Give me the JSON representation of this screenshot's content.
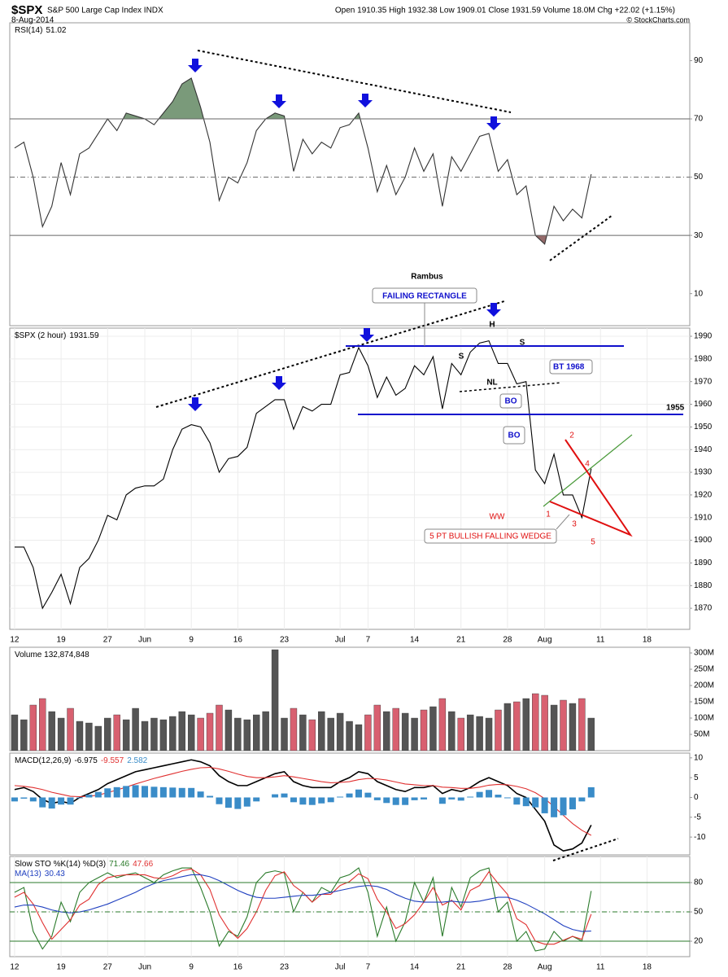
{
  "header": {
    "symbol": "$SPX",
    "name": "S&P 500 Large Cap Index INDX",
    "date": "8-Aug-2014",
    "quote": "Open 1910.35 High 1932.38 Low 1909.01 Close 1931.59 Volume 18.0M Chg +22.02 (+1.15%)",
    "credit": "© StockCharts.com"
  },
  "annotations": {
    "author": "Rambus",
    "pattern": "FAILING RECTANGLE",
    "head": "H",
    "left_shoulder": "S",
    "right_shoulder": "S",
    "neckline": "NL",
    "backtest": "BT 1968",
    "breakout_1": "BO",
    "breakout_2": "BO",
    "level_label": 1955,
    "wedge_points": [
      "1",
      "2",
      "3",
      "4",
      "5"
    ],
    "ww": "WW",
    "wedge": "5 PT BULLISH FALLING WEDGE"
  },
  "chart_data": [
    {
      "type": "line",
      "title": "RSI(14)",
      "xlim": [
        -0.52,
        72.6
      ],
      "ylim": [
        -1,
        103
      ],
      "yticks": [
        10,
        30,
        50,
        70,
        90
      ],
      "levels": [
        {
          "value": 70,
          "shade": "above",
          "color": "#6b8f6b"
        },
        {
          "value": 50,
          "dash": true
        },
        {
          "value": 30,
          "shade": "below",
          "color": "#8a5a5a"
        }
      ],
      "level_color": "#666",
      "x": [
        0,
        1,
        2,
        3,
        4,
        5,
        6,
        7,
        8,
        9,
        10,
        11,
        12,
        13,
        14,
        15,
        16,
        17,
        18,
        19,
        20,
        21,
        22,
        23,
        24,
        25,
        26,
        27,
        28,
        29,
        30,
        31,
        32,
        33,
        34,
        35,
        36,
        37,
        38,
        39,
        40,
        41,
        42,
        43,
        44,
        45,
        46,
        47,
        48,
        49,
        50,
        51,
        52,
        53,
        54,
        55,
        56,
        57,
        58,
        59,
        60,
        61,
        62
      ],
      "series": [
        {
          "color": "#333333",
          "values": [
            60,
            62,
            50,
            33,
            40,
            55,
            44,
            58,
            60,
            65,
            70,
            66,
            72,
            71,
            70,
            68,
            72,
            76,
            82,
            84,
            74,
            62,
            42,
            50,
            48,
            55,
            66,
            70,
            72,
            71,
            52,
            63,
            58,
            62,
            60,
            67,
            68,
            72,
            60,
            45,
            54,
            44,
            50,
            60,
            52,
            58,
            40,
            57,
            52,
            58,
            64,
            65,
            52,
            56,
            44,
            47,
            30,
            27,
            40,
            35,
            39,
            36,
            51.02
          ]
        }
      ]
    },
    {
      "type": "line",
      "title": "$SPX (2 hour)",
      "xlim": [
        -0.52,
        72.6
      ],
      "ylim": [
        1860.7,
        1993.6
      ],
      "yticks": [
        1870,
        1880,
        1890,
        1900,
        1910,
        1920,
        1930,
        1940,
        1950,
        1960,
        1970,
        1980,
        1990
      ],
      "grid": true,
      "xticks": [
        {
          "value": 0,
          "label": "12"
        },
        {
          "value": 5,
          "label": "19"
        },
        {
          "value": 10,
          "label": "27"
        },
        {
          "value": 14,
          "label": "Jun"
        },
        {
          "value": 19,
          "label": "9"
        },
        {
          "value": 24,
          "label": "16"
        },
        {
          "value": 29,
          "label": "23"
        },
        {
          "value": 35,
          "label": "Jul"
        },
        {
          "value": 38,
          "label": "7"
        },
        {
          "value": 43,
          "label": "14"
        },
        {
          "value": 48,
          "label": "21"
        },
        {
          "value": 53,
          "label": "28"
        },
        {
          "value": 57,
          "label": "Aug"
        },
        {
          "value": 63,
          "label": "11"
        },
        {
          "value": 68,
          "label": "18"
        }
      ],
      "x": [
        0,
        1,
        2,
        3,
        4,
        5,
        6,
        7,
        8,
        9,
        10,
        11,
        12,
        13,
        14,
        15,
        16,
        17,
        18,
        19,
        20,
        21,
        22,
        23,
        24,
        25,
        26,
        27,
        28,
        29,
        30,
        31,
        32,
        33,
        34,
        35,
        36,
        37,
        38,
        39,
        40,
        41,
        42,
        43,
        44,
        45,
        46,
        47,
        48,
        49,
        50,
        51,
        52,
        53,
        54,
        55,
        56,
        57,
        58,
        59,
        60,
        61,
        62
      ],
      "series": [
        {
          "color": "#000000",
          "values": [
            1897,
            1897,
            1888,
            1870,
            1877,
            1885,
            1872,
            1888,
            1892,
            1900,
            1911,
            1909,
            1920,
            1923,
            1924,
            1924,
            1927,
            1940,
            1949,
            1951,
            1950,
            1943,
            1930,
            1936,
            1937,
            1941,
            1956,
            1959,
            1962,
            1962,
            1949,
            1959,
            1957,
            1960,
            1960,
            1973,
            1974,
            1985,
            1977,
            1963,
            1972,
            1964,
            1967,
            1977,
            1973,
            1981,
            1958,
            1978,
            1973,
            1983,
            1987,
            1988,
            1978,
            1978,
            1969,
            1970,
            1931,
            1925,
            1938,
            1920,
            1920,
            1910,
            1931.59
          ]
        }
      ]
    },
    {
      "type": "bar",
      "title": "Volume 132,874,848",
      "xlim": [
        -0.52,
        72.6
      ],
      "ylim": [
        0,
        317500000
      ],
      "up_color": "#555555",
      "down_color": "#d86070",
      "yticks": [
        {
          "value": 50000000,
          "label": "50M"
        },
        {
          "value": 100000000,
          "label": "100M"
        },
        {
          "value": 150000000,
          "label": "150M"
        },
        {
          "value": 200000000,
          "label": "200M"
        },
        {
          "value": 250000000,
          "label": "250M"
        },
        {
          "value": 300000000,
          "label": "300M"
        }
      ],
      "x": [
        0,
        1,
        2,
        3,
        4,
        5,
        6,
        7,
        8,
        9,
        10,
        11,
        12,
        13,
        14,
        15,
        16,
        17,
        18,
        19,
        20,
        21,
        22,
        23,
        24,
        25,
        26,
        27,
        28,
        29,
        30,
        31,
        32,
        33,
        34,
        35,
        36,
        37,
        38,
        39,
        40,
        41,
        42,
        43,
        44,
        45,
        46,
        47,
        48,
        49,
        50,
        51,
        52,
        53,
        54,
        55,
        56,
        57,
        58,
        59,
        60,
        61,
        62
      ],
      "series": [
        {
          "values": [
            110000000,
            95000000,
            140000000,
            160000000,
            120000000,
            100000000,
            130000000,
            90000000,
            85000000,
            75000000,
            100000000,
            110000000,
            95000000,
            130000000,
            90000000,
            100000000,
            95000000,
            105000000,
            120000000,
            110000000,
            100000000,
            115000000,
            140000000,
            125000000,
            100000000,
            95000000,
            110000000,
            120000000,
            310000000,
            100000000,
            130000000,
            110000000,
            95000000,
            120000000,
            100000000,
            115000000,
            90000000,
            80000000,
            110000000,
            140000000,
            120000000,
            130000000,
            115000000,
            100000000,
            125000000,
            135000000,
            160000000,
            120000000,
            100000000,
            110000000,
            105000000,
            100000000,
            125000000,
            145000000,
            150000000,
            160000000,
            175000000,
            170000000,
            140000000,
            155000000,
            145000000,
            160000000,
            100000000
          ]
        }
      ]
    },
    {
      "type": "line",
      "title": "MACD(12,26,9)",
      "xlim": [
        -0.52,
        72.6
      ],
      "ylim": [
        -14.5,
        11.2
      ],
      "yticks": [
        -10,
        -5,
        0,
        5,
        10
      ],
      "x": [
        0,
        1,
        2,
        3,
        4,
        5,
        6,
        7,
        8,
        9,
        10,
        11,
        12,
        13,
        14,
        15,
        16,
        17,
        18,
        19,
        20,
        21,
        22,
        23,
        24,
        25,
        26,
        27,
        28,
        29,
        30,
        31,
        32,
        33,
        34,
        35,
        36,
        37,
        38,
        39,
        40,
        41,
        42,
        43,
        44,
        45,
        46,
        47,
        48,
        49,
        50,
        51,
        52,
        53,
        54,
        55,
        56,
        57,
        58,
        59,
        60,
        61,
        62
      ],
      "series": [
        {
          "color": "#000000",
          "values": [
            2,
            2.5,
            1.5,
            -0.5,
            -1.5,
            -1,
            -1.5,
            0,
            1,
            2,
            3.5,
            4.5,
            5.5,
            6.5,
            7,
            7.5,
            8,
            8.5,
            9,
            9.5,
            9,
            8,
            5.5,
            4,
            3,
            3,
            4,
            5,
            6,
            6.5,
            4,
            3,
            2.5,
            2.5,
            2.5,
            4,
            5,
            6.5,
            6,
            4,
            3,
            2,
            1.5,
            2.5,
            2.5,
            3,
            1,
            2,
            1.5,
            2.5,
            4,
            5,
            4,
            3,
            1,
            0,
            -3,
            -6,
            -12,
            -13.5,
            -13,
            -11.5,
            -6.975
          ]
        },
        {
          "color": "#e03030",
          "values": [
            3,
            2.8,
            2.5,
            2,
            1.3,
            0.8,
            0.3,
            0.2,
            0.3,
            0.6,
            1.2,
            1.9,
            2.6,
            3.4,
            4.1,
            4.8,
            5.4,
            6,
            6.6,
            7.1,
            7.5,
            7.6,
            7.2,
            6.6,
            5.9,
            5.3,
            5,
            5,
            5.2,
            5.5,
            5.2,
            4.8,
            4.4,
            4,
            3.7,
            3.8,
            4,
            4.5,
            4.8,
            4.7,
            4.4,
            3.9,
            3.4,
            3.2,
            3,
            3,
            2.6,
            2.5,
            2.3,
            2.3,
            2.6,
            3.1,
            3.3,
            3.2,
            2.8,
            2.2,
            1.2,
            -0.3,
            -2.3,
            -4.5,
            -6.6,
            -8.3,
            -9.557
          ]
        },
        {
          "type": "bar",
          "color": "#3a8cc8",
          "values": [
            -1,
            -0.3,
            -1,
            -2.5,
            -2.8,
            -1.8,
            -1.8,
            -0.2,
            0.7,
            1.4,
            2.3,
            2.6,
            2.9,
            3.1,
            2.9,
            2.7,
            2.6,
            2.5,
            2.4,
            2.4,
            1.5,
            0.4,
            -1.7,
            -2.6,
            -2.9,
            -2.3,
            -1,
            0,
            0.8,
            1,
            -1.2,
            -1.8,
            -1.9,
            -1.5,
            -1.2,
            0.2,
            1,
            2,
            1.2,
            -0.7,
            -1.4,
            -1.9,
            -1.9,
            -0.7,
            -0.5,
            0,
            -1.6,
            -0.5,
            -0.8,
            0.2,
            1.4,
            1.9,
            0.7,
            -0.2,
            -1.8,
            -2.2,
            -2.5,
            -4,
            -5,
            -4.5,
            -3,
            -1,
            2.582
          ]
        }
      ]
    },
    {
      "type": "line",
      "title": "Slow STO %K(14) %D(3)",
      "xlim": [
        -0.52,
        72.6
      ],
      "ylim": [
        4.2,
        106.7
      ],
      "yticks": [
        20,
        50,
        80
      ],
      "grid": true,
      "levels": [
        {
          "value": 80
        },
        {
          "value": 50,
          "dash": true
        },
        {
          "value": 20
        }
      ],
      "level_color": "#2a7a2a",
      "xticks": [
        {
          "value": 0,
          "label": "12"
        },
        {
          "value": 5,
          "label": "19"
        },
        {
          "value": 10,
          "label": "27"
        },
        {
          "value": 14,
          "label": "Jun"
        },
        {
          "value": 19,
          "label": "9"
        },
        {
          "value": 24,
          "label": "16"
        },
        {
          "value": 29,
          "label": "23"
        },
        {
          "value": 35,
          "label": "Jul"
        },
        {
          "value": 38,
          "label": "7"
        },
        {
          "value": 43,
          "label": "14"
        },
        {
          "value": 48,
          "label": "21"
        },
        {
          "value": 53,
          "label": "28"
        },
        {
          "value": 57,
          "label": "Aug"
        },
        {
          "value": 63,
          "label": "11"
        },
        {
          "value": 68,
          "label": "18"
        }
      ],
      "x": [
        0,
        1,
        2,
        3,
        4,
        5,
        6,
        7,
        8,
        9,
        10,
        11,
        12,
        13,
        14,
        15,
        16,
        17,
        18,
        19,
        20,
        21,
        22,
        23,
        24,
        25,
        26,
        27,
        28,
        29,
        30,
        31,
        32,
        33,
        34,
        35,
        36,
        37,
        38,
        39,
        40,
        41,
        42,
        43,
        44,
        45,
        46,
        47,
        48,
        49,
        50,
        51,
        52,
        53,
        54,
        55,
        56,
        57,
        58,
        59,
        60,
        61,
        62
      ],
      "series": [
        {
          "color": "#2a7a2a",
          "values": [
            70,
            75,
            30,
            12,
            25,
            60,
            40,
            70,
            80,
            85,
            90,
            85,
            88,
            90,
            85,
            80,
            88,
            92,
            95,
            95,
            75,
            50,
            15,
            30,
            25,
            45,
            80,
            90,
            92,
            90,
            50,
            70,
            60,
            75,
            70,
            85,
            88,
            95,
            70,
            25,
            55,
            20,
            40,
            80,
            60,
            85,
            25,
            75,
            55,
            85,
            92,
            95,
            50,
            60,
            20,
            30,
            10,
            12,
            30,
            20,
            25,
            20,
            71.46
          ]
        },
        {
          "color": "#e03030",
          "values": [
            65,
            70,
            58,
            39,
            22,
            32,
            42,
            57,
            63,
            78,
            85,
            87,
            88,
            88,
            88,
            85,
            84,
            87,
            92,
            94,
            88,
            73,
            47,
            32,
            23,
            33,
            50,
            72,
            87,
            91,
            77,
            70,
            60,
            68,
            68,
            77,
            81,
            89,
            84,
            63,
            50,
            33,
            38,
            47,
            60,
            75,
            57,
            62,
            52,
            72,
            77,
            91,
            79,
            68,
            43,
            37,
            20,
            17,
            17,
            21,
            25,
            22,
            47.66
          ]
        },
        {
          "name": "MA(13)",
          "color": "#2040c0",
          "values": [
            55,
            57,
            57,
            55,
            52,
            50,
            49,
            50,
            52,
            55,
            58,
            62,
            66,
            70,
            75,
            79,
            82,
            84,
            86,
            88,
            88,
            86,
            82,
            77,
            72,
            68,
            65,
            64,
            64,
            65,
            66,
            67,
            67,
            68,
            70,
            72,
            74,
            76,
            77,
            76,
            73,
            68,
            64,
            61,
            60,
            60,
            60,
            61,
            60,
            60,
            61,
            63,
            65,
            65,
            62,
            58,
            53,
            48,
            42,
            36,
            32,
            30,
            30.43
          ]
        }
      ]
    }
  ]
}
